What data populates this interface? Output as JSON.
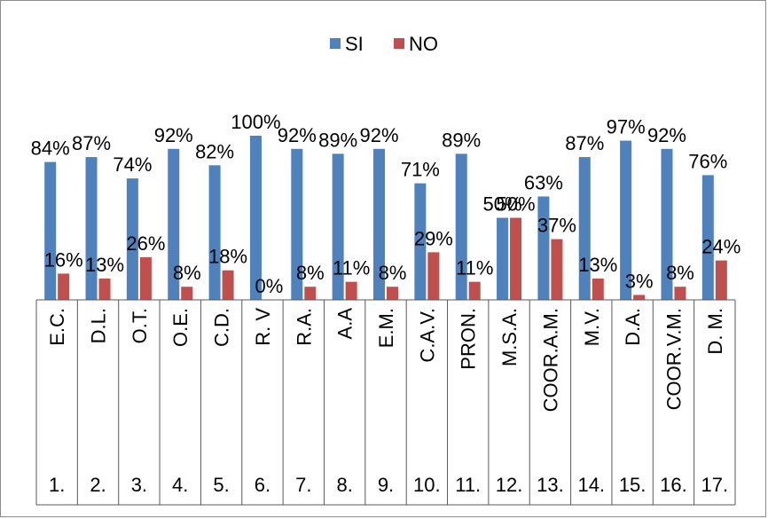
{
  "chart_data": {
    "type": "bar",
    "categories": [
      "E.C.",
      "D.L.",
      "O.T.",
      "O.E.",
      "C.D.",
      "R. V",
      "R.A.",
      "A.A",
      "E.M.",
      "C.A.V.",
      "PRON.",
      "M.S.A.",
      "COOR.A.M.",
      "M.V.",
      "D.A.",
      "COOR.V.M.",
      "D. M."
    ],
    "numbers": [
      "1.",
      "2.",
      "3.",
      "4.",
      "5.",
      "6.",
      "7.",
      "8.",
      "9.",
      "10.",
      "11.",
      "12.",
      "13.",
      "14.",
      "15.",
      "16.",
      "17."
    ],
    "series": [
      {
        "name": "SI",
        "color": "#4f81bd",
        "values": [
          84,
          87,
          74,
          92,
          82,
          100,
          92,
          89,
          92,
          71,
          89,
          50,
          63,
          87,
          97,
          92,
          76
        ],
        "labels": [
          "84%",
          "87%",
          "74%",
          "92%",
          "82%",
          "100%",
          "92%",
          "89%",
          "92%",
          "71%",
          "89%",
          "50%",
          "63%",
          "87%",
          "97%",
          "92%",
          "76%"
        ]
      },
      {
        "name": "NO",
        "color": "#c0504d",
        "values": [
          16,
          13,
          26,
          8,
          18,
          0,
          8,
          11,
          8,
          29,
          11,
          50,
          37,
          13,
          3,
          8,
          24
        ],
        "labels": [
          "16%",
          "13%",
          "26%",
          "8%",
          "18%",
          "0%",
          "8%",
          "11%",
          "8%",
          "29%",
          "11%",
          "50%",
          "37%",
          "13%",
          "3%",
          "8%",
          "24%"
        ]
      }
    ],
    "ylim": [
      0,
      100
    ],
    "legend_position": "top",
    "grid": false
  }
}
